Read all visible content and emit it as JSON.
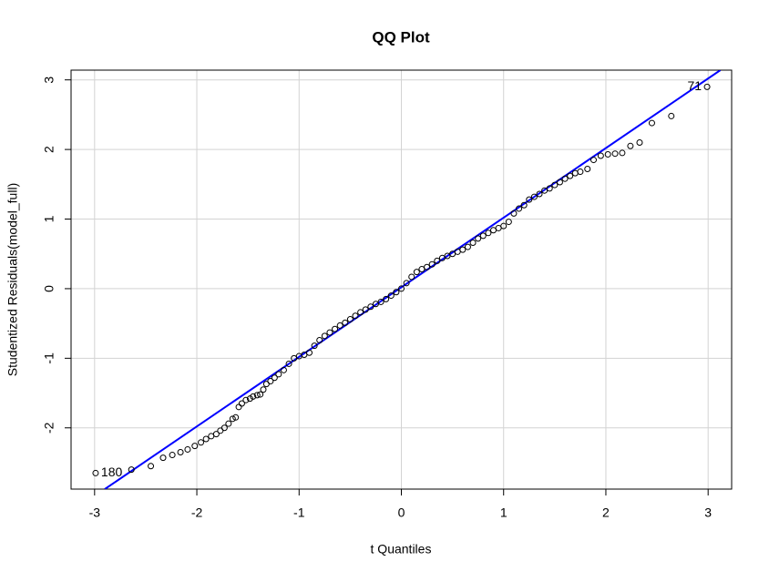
{
  "chart_data": {
    "type": "scatter",
    "title": "QQ Plot",
    "x_label": "t Quantiles",
    "y_label": "Studentized Residuals(model_full)",
    "xlim": [
      -3.23,
      3.23
    ],
    "ylim": [
      -2.88,
      3.14
    ],
    "xticks": [
      -3,
      -2,
      -1,
      0,
      1,
      2,
      3
    ],
    "yticks": [
      -2,
      -1,
      0,
      1,
      2,
      3
    ],
    "grid": true,
    "series": [
      {
        "color": "#000000",
        "x": [
          -2.99,
          -2.64,
          -2.45,
          -2.33,
          -2.24,
          -2.16,
          -2.09,
          -2.02,
          -1.96,
          -1.91,
          -1.86,
          -1.81,
          -1.77,
          -1.73,
          -1.69,
          -1.65,
          -1.62,
          -1.59,
          -1.56,
          -1.52,
          -1.48,
          -1.45,
          -1.41,
          -1.38,
          -1.35,
          -1.32,
          -1.28,
          -1.24,
          -1.2,
          -1.15,
          -1.1,
          -1.05,
          -1.0,
          -0.95,
          -0.9,
          -0.85,
          -0.8,
          -0.75,
          -0.7,
          -0.65,
          -0.6,
          -0.55,
          -0.5,
          -0.45,
          -0.4,
          -0.35,
          -0.3,
          -0.25,
          -0.2,
          -0.15,
          -0.1,
          -0.05,
          0,
          0.05,
          0.1,
          0.15,
          0.2,
          0.25,
          0.3,
          0.35,
          0.4,
          0.45,
          0.5,
          0.55,
          0.6,
          0.65,
          0.7,
          0.75,
          0.8,
          0.85,
          0.9,
          0.95,
          1.0,
          1.05,
          1.1,
          1.15,
          1.2,
          1.25,
          1.3,
          1.35,
          1.4,
          1.45,
          1.5,
          1.55,
          1.6,
          1.65,
          1.7,
          1.75,
          1.82,
          1.88,
          1.95,
          2.02,
          2.09,
          2.16,
          2.24,
          2.33,
          2.45,
          2.64,
          2.99
        ],
        "values": [
          -2.65,
          -2.6,
          -2.55,
          -2.43,
          -2.39,
          -2.35,
          -2.31,
          -2.26,
          -2.21,
          -2.16,
          -2.12,
          -2.09,
          -2.04,
          -2.0,
          -1.94,
          -1.87,
          -1.85,
          -1.7,
          -1.65,
          -1.6,
          -1.58,
          -1.55,
          -1.53,
          -1.52,
          -1.45,
          -1.37,
          -1.33,
          -1.28,
          -1.23,
          -1.17,
          -1.08,
          -1.0,
          -0.97,
          -0.95,
          -0.92,
          -0.82,
          -0.74,
          -0.68,
          -0.63,
          -0.58,
          -0.53,
          -0.49,
          -0.44,
          -0.39,
          -0.34,
          -0.3,
          -0.26,
          -0.22,
          -0.19,
          -0.15,
          -0.1,
          -0.05,
          0,
          0.08,
          0.17,
          0.24,
          0.28,
          0.31,
          0.35,
          0.4,
          0.44,
          0.47,
          0.5,
          0.53,
          0.56,
          0.6,
          0.66,
          0.72,
          0.76,
          0.8,
          0.84,
          0.87,
          0.9,
          0.96,
          1.08,
          1.15,
          1.2,
          1.28,
          1.32,
          1.36,
          1.41,
          1.44,
          1.49,
          1.53,
          1.58,
          1.62,
          1.66,
          1.68,
          1.72,
          1.85,
          1.91,
          1.93,
          1.94,
          1.95,
          2.05,
          2.1,
          2.38,
          2.48,
          2.9
        ]
      }
    ],
    "reference_line": {
      "color": "#0000ff",
      "x": [
        -2.9,
        3.12
      ],
      "values": [
        -2.88,
        3.14
      ]
    },
    "point_labels": [
      "180",
      "71"
    ]
  }
}
